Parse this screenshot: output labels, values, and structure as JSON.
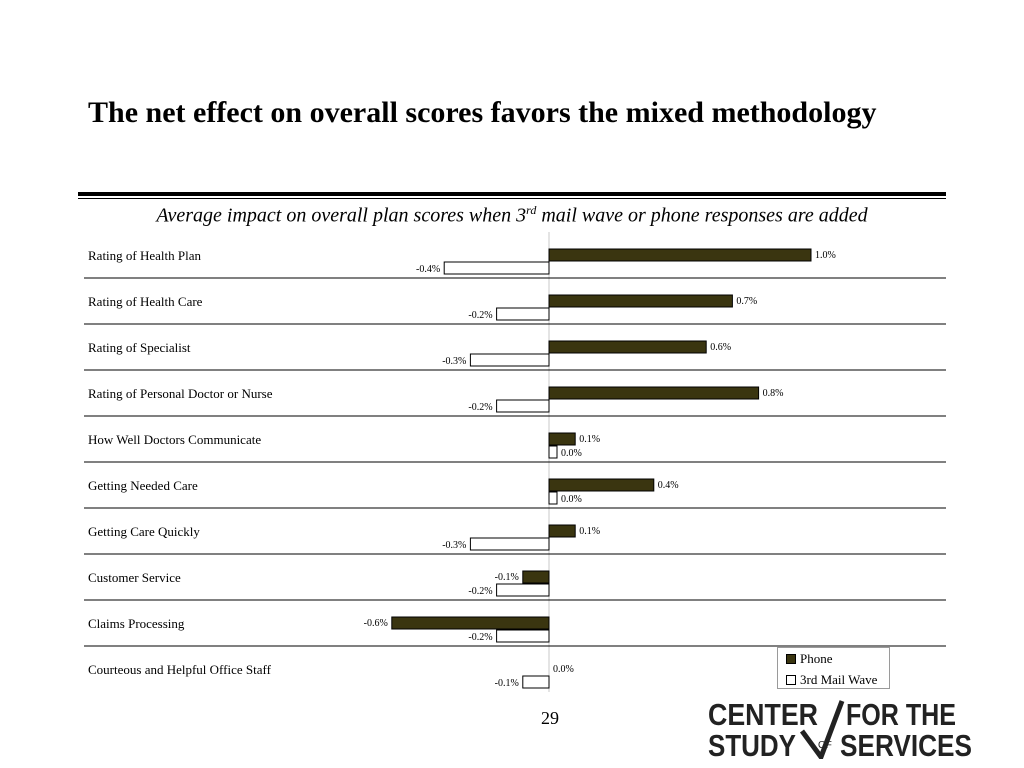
{
  "title": "The net effect on overall scores favors the mixed methodology",
  "subtitle": {
    "before": "Average impact on overall plan scores when 3",
    "sup": "rd",
    "after": " mail wave or phone responses are added"
  },
  "page_number": "29",
  "logo": {
    "line1_left": "CENTER",
    "line1_right": "FOR THE",
    "line2_left": "STUDY",
    "line2_mid": "OF",
    "line2_right": "SERVICES"
  },
  "colors": {
    "phone": "#3a3510",
    "mail": "#ffffff"
  },
  "chart_data": {
    "type": "bar",
    "orientation": "horizontal",
    "categories": [
      "Rating of Health Plan",
      "Rating of Health Care",
      "Rating of Specialist",
      "Rating of Personal Doctor or Nurse",
      "How Well Doctors Communicate",
      "Getting Needed Care",
      "Getting Care Quickly",
      "Customer Service",
      "Claims Processing",
      "Courteous and Helpful Office Staff"
    ],
    "series": [
      {
        "name": "Phone",
        "values": [
          1.0,
          0.7,
          0.6,
          0.8,
          0.1,
          0.4,
          0.1,
          -0.1,
          -0.6,
          0.0
        ],
        "labels": [
          "1.0%",
          "0.7%",
          "0.6%",
          "0.8%",
          "0.1%",
          "0.4%",
          "0.1%",
          "-0.1%",
          "-0.6%",
          "0.0%"
        ]
      },
      {
        "name": "3rd Mail Wave",
        "values": [
          -0.4,
          -0.2,
          -0.3,
          -0.2,
          0.0,
          0.0,
          -0.3,
          -0.2,
          -0.2,
          -0.1
        ],
        "labels": [
          "-0.4%",
          "-0.2%",
          "-0.3%",
          "-0.2%",
          "0.0%",
          "0.0%",
          "-0.3%",
          "-0.2%",
          "-0.2%",
          "-0.1%"
        ]
      }
    ],
    "unit": "%",
    "legend_position": "bottom-right"
  }
}
